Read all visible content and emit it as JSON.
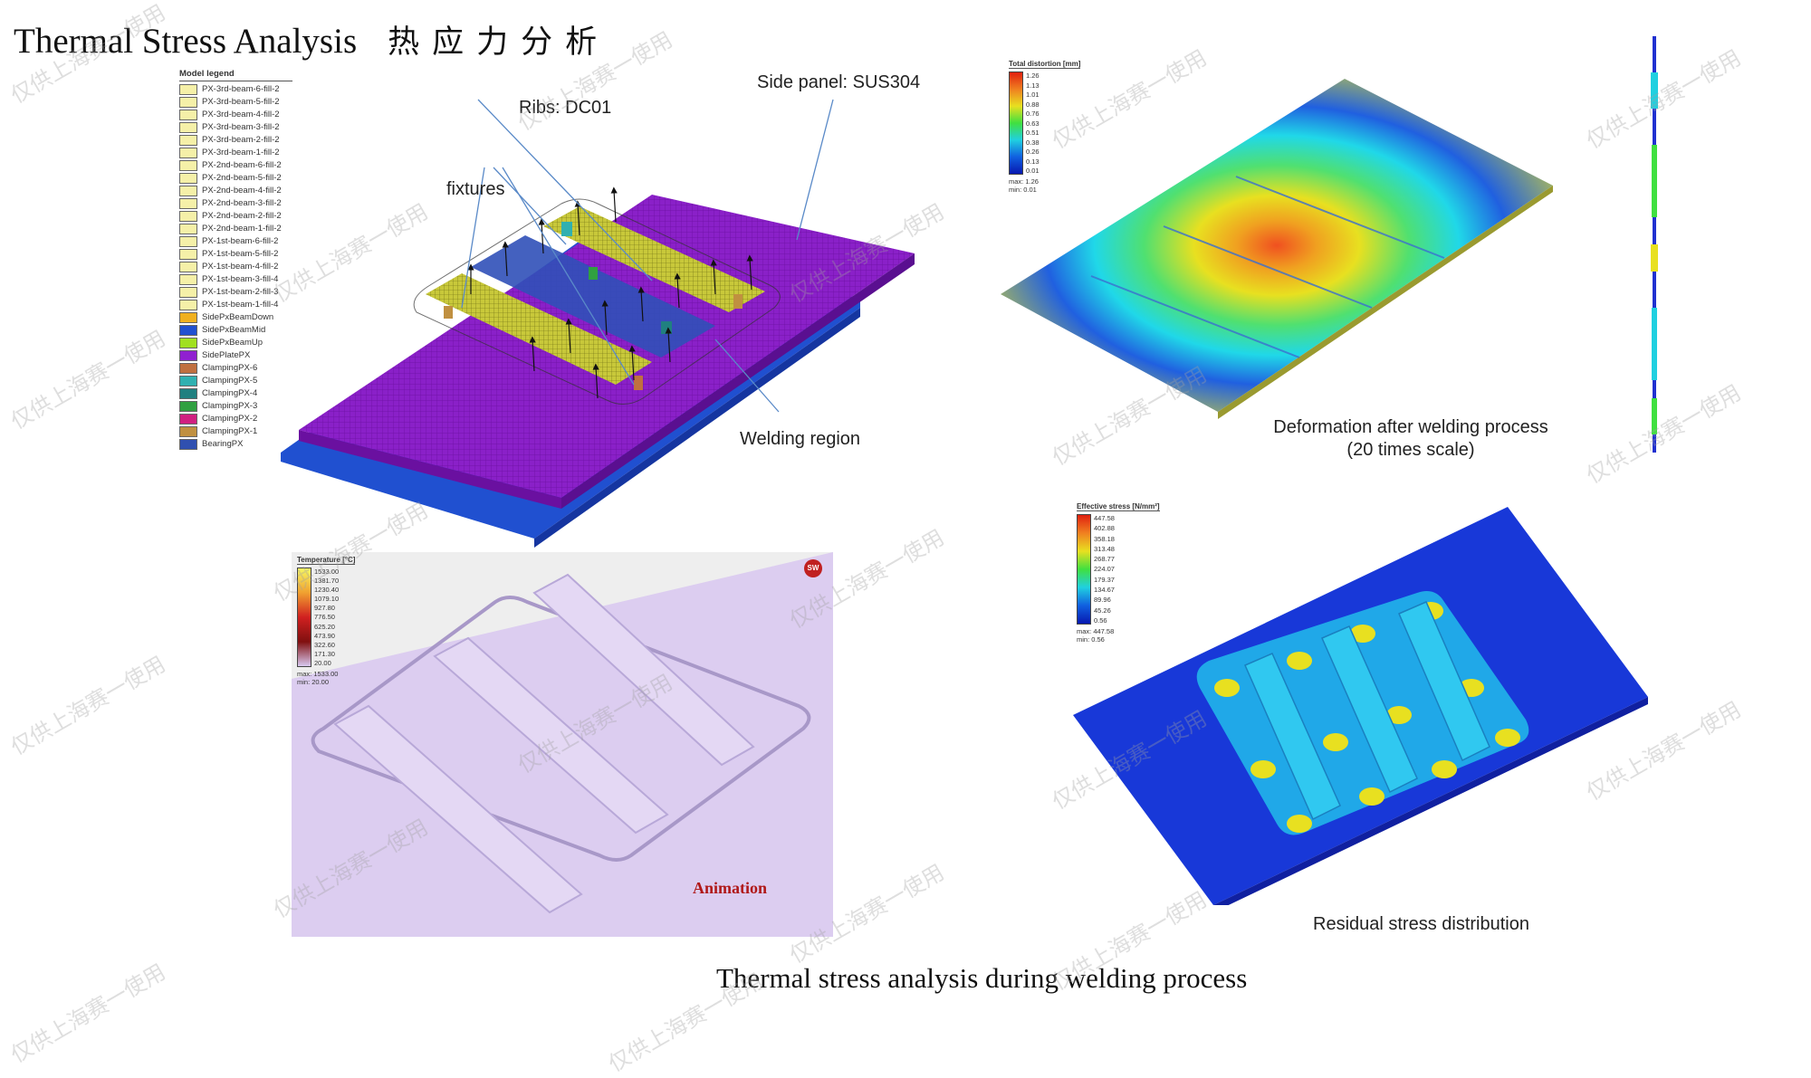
{
  "page": {
    "title_en": "Thermal Stress Analysis",
    "title_cn": "热应力分析",
    "caption": "Thermal stress analysis during welding process"
  },
  "model_legend": {
    "header": "Model legend",
    "items": [
      {
        "label": "PX-3rd-beam-6-fill-2",
        "color": "#f5f0a8"
      },
      {
        "label": "PX-3rd-beam-5-fill-2",
        "color": "#f5f0a8"
      },
      {
        "label": "PX-3rd-beam-4-fill-2",
        "color": "#f5f0a8"
      },
      {
        "label": "PX-3rd-beam-3-fill-2",
        "color": "#f5f0a8"
      },
      {
        "label": "PX-3rd-beam-2-fill-2",
        "color": "#f5f0a8"
      },
      {
        "label": "PX-3rd-beam-1-fill-2",
        "color": "#f5f0a8"
      },
      {
        "label": "PX-2nd-beam-6-fill-2",
        "color": "#f5f0a8"
      },
      {
        "label": "PX-2nd-beam-5-fill-2",
        "color": "#f5f0a8"
      },
      {
        "label": "PX-2nd-beam-4-fill-2",
        "color": "#f5f0a8"
      },
      {
        "label": "PX-2nd-beam-3-fill-2",
        "color": "#f5f0a8"
      },
      {
        "label": "PX-2nd-beam-2-fill-2",
        "color": "#f5f0a8"
      },
      {
        "label": "PX-2nd-beam-1-fill-2",
        "color": "#f5f0a8"
      },
      {
        "label": "PX-1st-beam-6-fill-2",
        "color": "#f5f0a8"
      },
      {
        "label": "PX-1st-beam-5-fill-2",
        "color": "#f5f0a8"
      },
      {
        "label": "PX-1st-beam-4-fill-2",
        "color": "#f5f0a8"
      },
      {
        "label": "PX-1st-beam-3-fill-4",
        "color": "#f5f0a8"
      },
      {
        "label": "PX-1st-beam-2-fill-3",
        "color": "#f5f0a8"
      },
      {
        "label": "PX-1st-beam-1-fill-4",
        "color": "#f5f0a8"
      },
      {
        "label": "SidePxBeamDown",
        "color": "#f0b020"
      },
      {
        "label": "SidePxBeamMid",
        "color": "#2050d0"
      },
      {
        "label": "SidePxBeamUp",
        "color": "#a0e020"
      },
      {
        "label": "SidePlatePX",
        "color": "#9020d0"
      },
      {
        "label": "ClampingPX-6",
        "color": "#c07040"
      },
      {
        "label": "ClampingPX-5",
        "color": "#30b0b0"
      },
      {
        "label": "ClampingPX-4",
        "color": "#208080"
      },
      {
        "label": "ClampingPX-3",
        "color": "#30a040"
      },
      {
        "label": "ClampingPX-2",
        "color": "#d02080"
      },
      {
        "label": "ClampingPX-1",
        "color": "#c09040"
      },
      {
        "label": "BearingPX",
        "color": "#3050b0"
      }
    ]
  },
  "annotations": {
    "side_panel": "Side panel: SUS304",
    "ribs": "Ribs: DC01",
    "fixtures": "fixtures",
    "welding_region": "Welding region"
  },
  "distortion_legend": {
    "header": "Total distortion [mm]",
    "ticks": [
      "1.26",
      "1.13",
      "1.01",
      "0.88",
      "0.76",
      "0.63",
      "0.51",
      "0.38",
      "0.26",
      "0.13",
      "0.01"
    ],
    "max": "max: 1.26",
    "min": "min: 0.01"
  },
  "deformation_caption": {
    "line1": "Deformation after welding process",
    "line2": "(20 times scale)"
  },
  "temperature_legend": {
    "header": "Temperature [°C]",
    "ticks": [
      "1533.00",
      "1381.70",
      "1230.40",
      "1079.10",
      "927.80",
      "776.50",
      "625.20",
      "473.90",
      "322.60",
      "171.30",
      "20.00"
    ],
    "max": "max: 1533.00",
    "min": "min:   20.00"
  },
  "animation_label": "Animation",
  "stress_legend": {
    "header": "Effective stress [N/mm²]",
    "ticks": [
      "447.58",
      "402.88",
      "358.18",
      "313.48",
      "268.77",
      "224.07",
      "179.37",
      "134.67",
      "89.96",
      "45.26",
      "0.56"
    ],
    "max": "max: 447.58",
    "min": "min:    0.56"
  },
  "residual_caption": "Residual stress distribution",
  "watermark": "仅供上海赛一使用",
  "logo_text": "SW"
}
